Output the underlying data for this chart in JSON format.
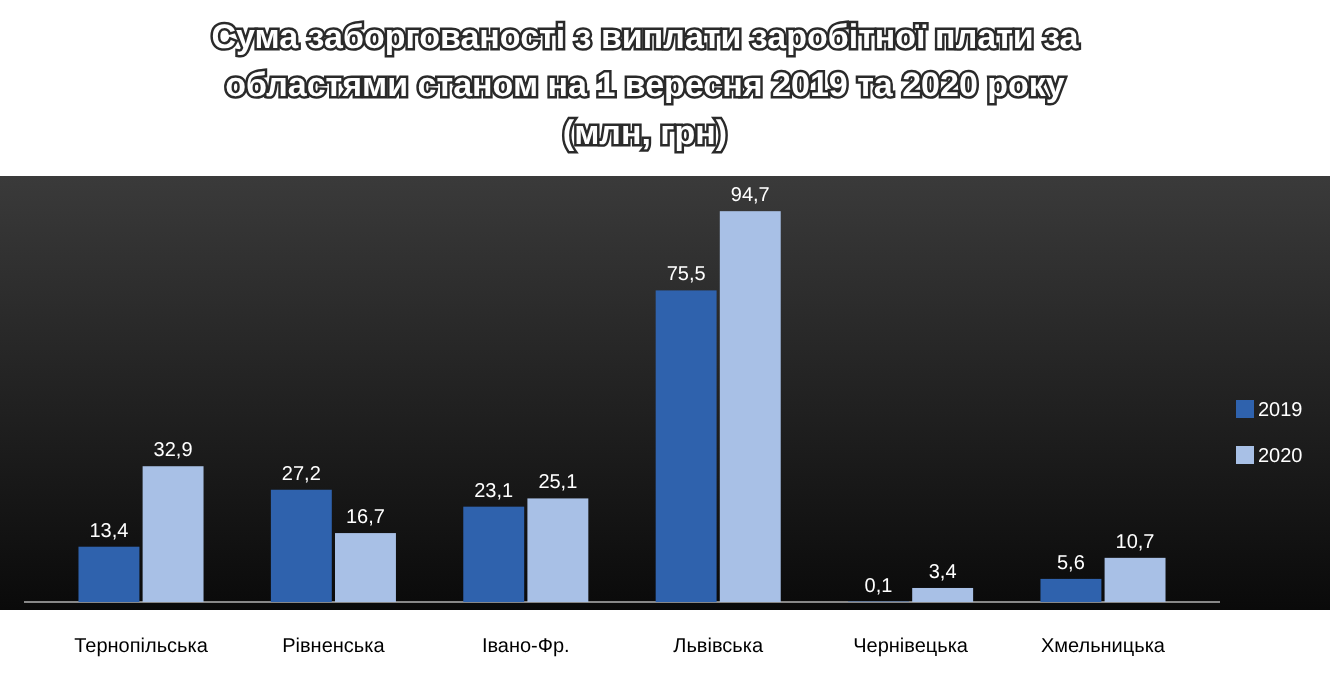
{
  "chart_data": {
    "type": "bar",
    "title": "Сума заборгованості з виплати заробітної плати за областями станом на 1 вересня 2019 та 2020 року (млн, грн)",
    "categories": [
      "Тернопільська",
      "Рівненська",
      "Івано-Фр.",
      "Львівська",
      "Чернівецька",
      "Хмельницька"
    ],
    "series": [
      {
        "name": "2019",
        "color": "#2f62ad",
        "values": [
          13.4,
          27.2,
          23.1,
          75.5,
          0.1,
          5.6
        ],
        "value_labels": [
          "13,4",
          "27,2",
          "23,1",
          "75,5",
          "0,1",
          "5,6"
        ]
      },
      {
        "name": "2020",
        "color": "#a8c0e6",
        "values": [
          32.9,
          16.7,
          25.1,
          94.7,
          3.4,
          10.7
        ],
        "value_labels": [
          "32,9",
          "16,7",
          "25,1",
          "94,7",
          "3,4",
          "10,7"
        ]
      }
    ],
    "legend": "right"
  }
}
